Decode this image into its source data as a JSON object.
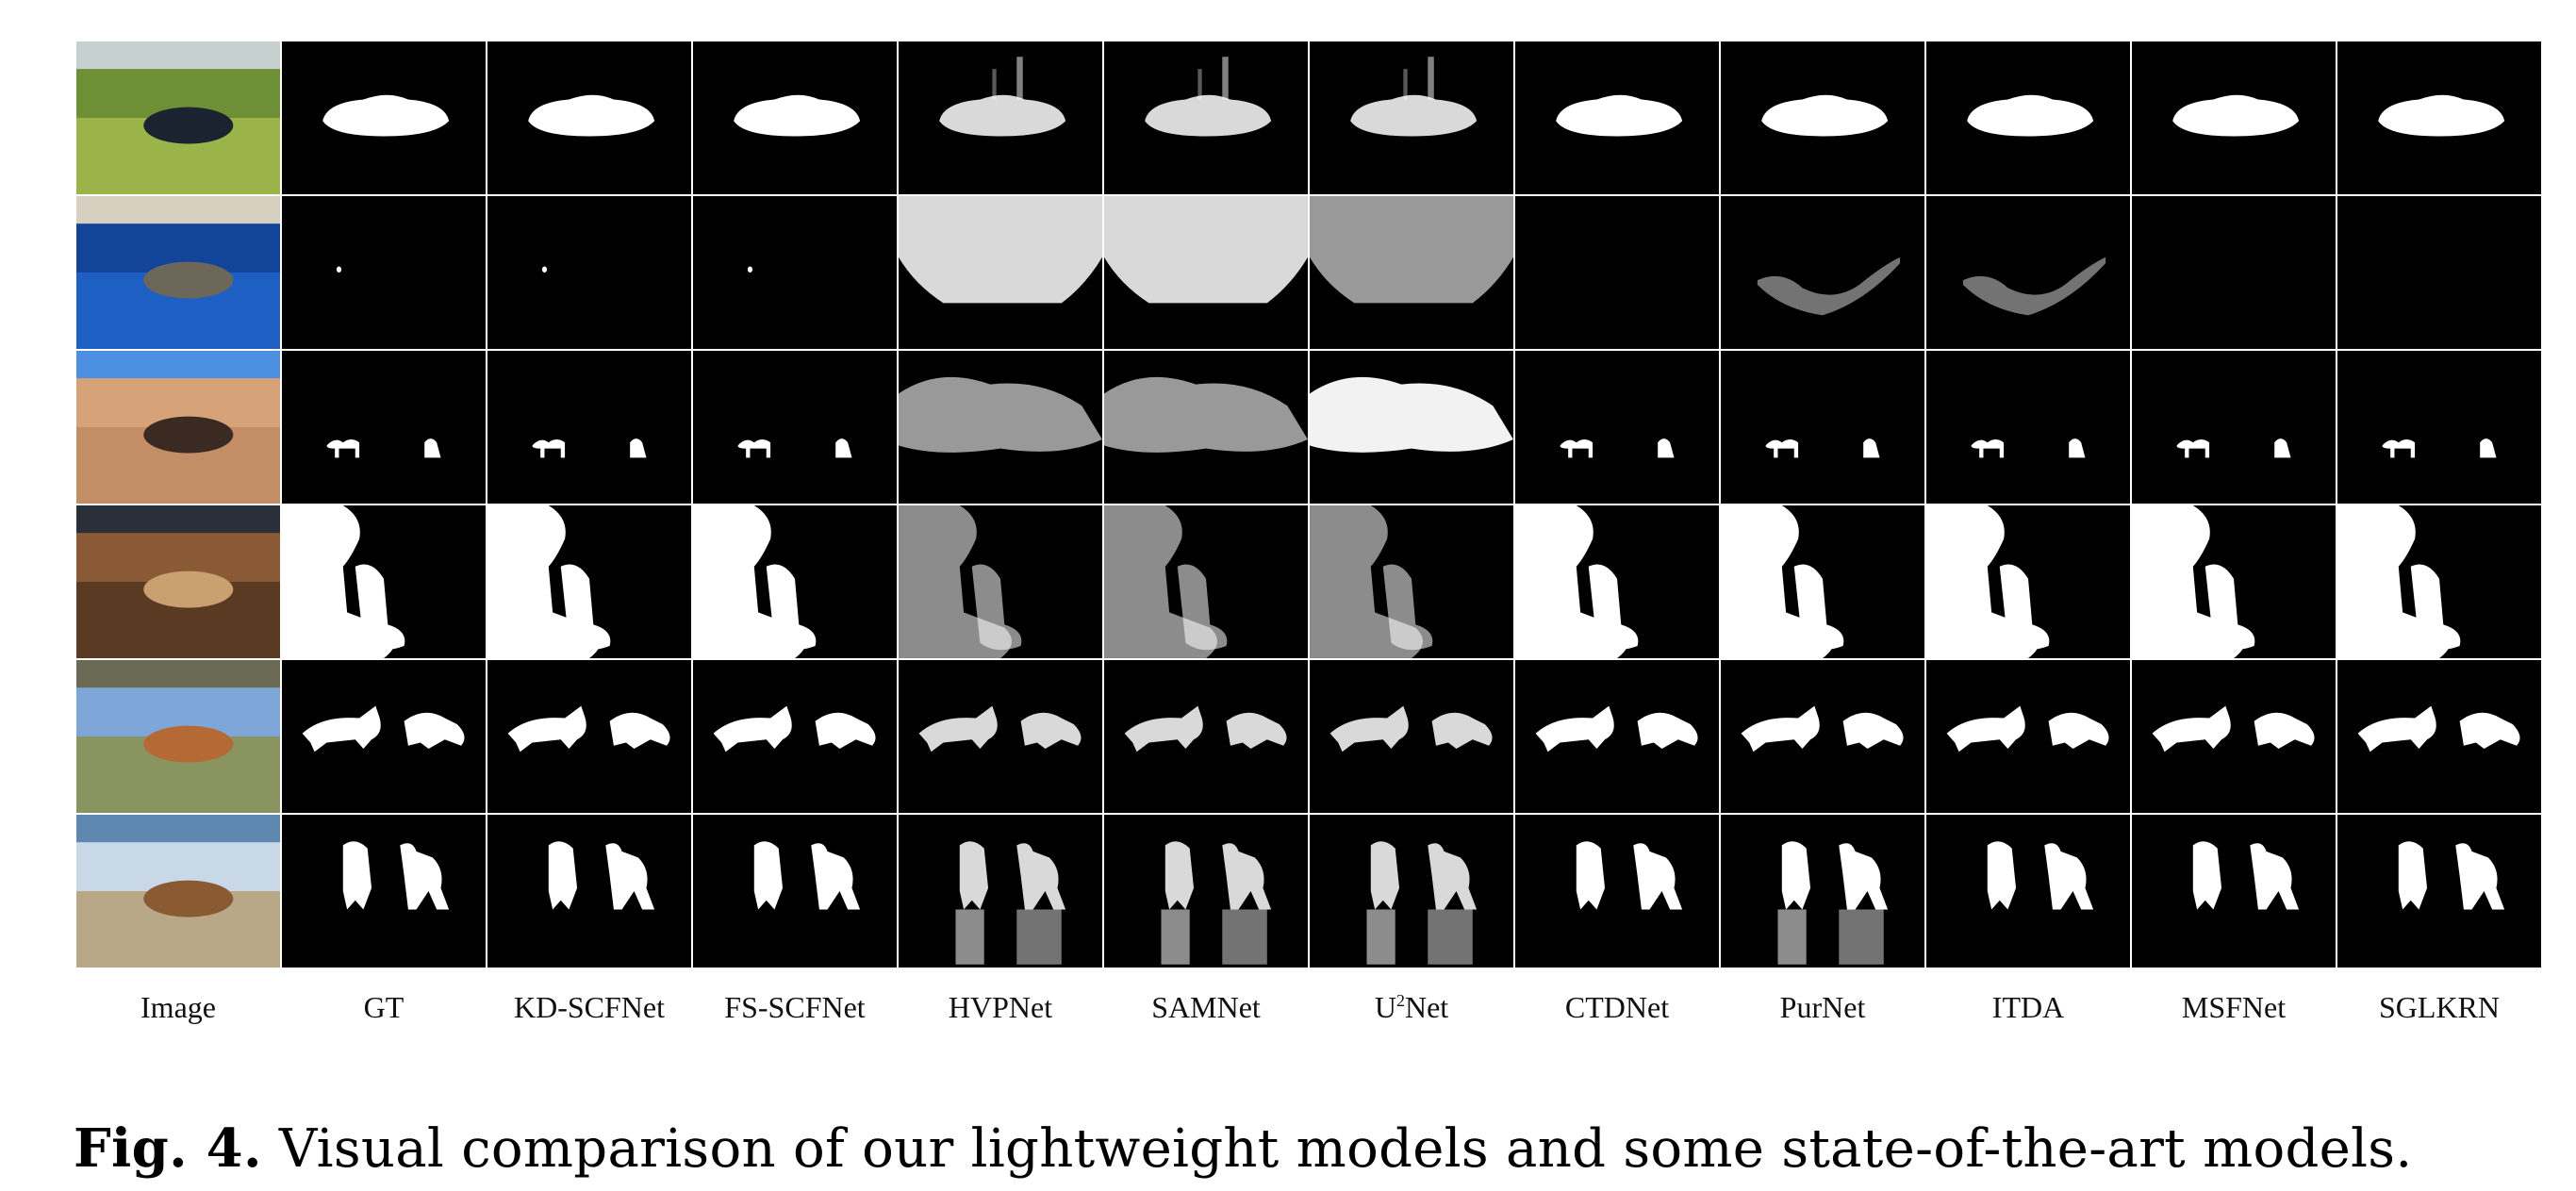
{
  "figure": {
    "columns": [
      "Image",
      "GT",
      "KD-SCFNet",
      "FS-SCFNet",
      "HVPNet",
      "SAMNet",
      "U2Net",
      "CTDNet",
      "PurNet",
      "ITDA",
      "MSFNet",
      "SGLKRN"
    ],
    "u2net_label": {
      "base": "U",
      "sup": "2",
      "rest": "Net"
    },
    "rows": [
      {
        "scene": "car on grass slope",
        "image_colors": [
          "#6d8f35",
          "#9ab44a",
          "#1b2230",
          "#c6d1cf"
        ]
      },
      {
        "scene": "sea cove with small boat",
        "image_colors": [
          "#12459a",
          "#1d5fc2",
          "#6d675a",
          "#d7d0c0"
        ]
      },
      {
        "scene": "desert with two camels",
        "image_colors": [
          "#d8a279",
          "#c38d66",
          "#3a2a22",
          "#4d8fe0"
        ]
      },
      {
        "scene": "man playing saxophone",
        "image_colors": [
          "#8a5a36",
          "#5a3a22",
          "#c9a070",
          "#2a2f3a"
        ]
      },
      {
        "scene": "two foxes on rocks",
        "image_colors": [
          "#7ea6d8",
          "#8a9460",
          "#b56a35",
          "#6b6b55"
        ]
      },
      {
        "scene": "two dogs on beach",
        "image_colors": [
          "#c9d8e6",
          "#b9a887",
          "#8a5a32",
          "#5f88b0"
        ]
      }
    ]
  },
  "caption": {
    "label": "Fig. 4.",
    "text": "Visual comparison of our lightweight models and some state-of-the-art models."
  }
}
